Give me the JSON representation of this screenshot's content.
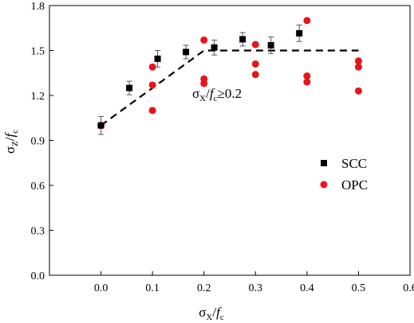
{
  "chart_data": {
    "type": "scatter",
    "xlabel": {
      "main": "σ",
      "sub1": "X",
      "sep": "/",
      "main2": "f",
      "sub2": "c"
    },
    "ylabel": {
      "main": "σ",
      "sub1": "Z",
      "sep": "/",
      "main2": "f",
      "sub2": "c"
    },
    "xlim": [
      -0.1,
      0.6
    ],
    "ylim": [
      0.0,
      1.8
    ],
    "x_ticks": [
      0.0,
      0.1,
      0.2,
      0.3,
      0.4,
      0.5,
      0.6
    ],
    "x_tick_labels": [
      "0.0",
      "0.1",
      "0.2",
      "0.3",
      "0.4",
      "0.5",
      "0.6"
    ],
    "y_ticks": [
      0.0,
      0.3,
      0.6,
      0.9,
      1.2,
      1.5,
      1.8
    ],
    "y_tick_labels": [
      "0.0",
      "0.3",
      "0.6",
      "0.9",
      "1.2",
      "1.5",
      "1.8"
    ],
    "grid": false,
    "legend_position": "right",
    "series": [
      {
        "name": "SCC",
        "marker": "square",
        "color": "#000000",
        "x": [
          0.0,
          0.055,
          0.11,
          0.165,
          0.22,
          0.275,
          0.33,
          0.385
        ],
        "y": [
          1.0,
          1.25,
          1.445,
          1.49,
          1.52,
          1.575,
          1.535,
          1.615
        ],
        "error": [
          0.06,
          0.045,
          0.055,
          0.045,
          0.05,
          0.045,
          0.055,
          0.055
        ]
      },
      {
        "name": "OPC",
        "marker": "circle",
        "color": "#e8141b",
        "x": [
          0.0,
          0.1,
          0.1,
          0.1,
          0.2,
          0.2,
          0.2,
          0.3,
          0.3,
          0.3,
          0.4,
          0.4,
          0.4,
          0.5,
          0.5,
          0.5
        ],
        "y": [
          1.0,
          1.1,
          1.27,
          1.39,
          1.28,
          1.31,
          1.57,
          1.34,
          1.41,
          1.54,
          1.29,
          1.33,
          1.7,
          1.23,
          1.39,
          1.43
        ]
      }
    ],
    "reference_line": {
      "style": "dashed",
      "x": [
        0.0,
        0.2,
        0.5
      ],
      "y": [
        1.0,
        1.5,
        1.5
      ]
    },
    "annotation": {
      "main": "σ",
      "sub1": "X",
      "sep": "/",
      "main2": "f",
      "sub2": "c",
      "rest": "≥0.2"
    }
  }
}
